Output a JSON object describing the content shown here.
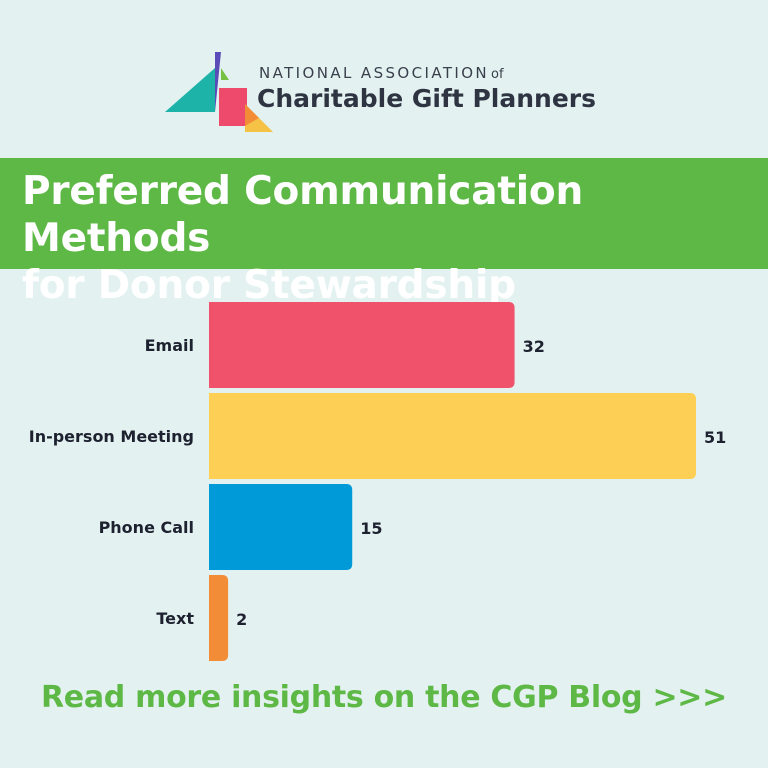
{
  "organization": {
    "line1": "NATIONAL ASSOCIATION",
    "line1_suffix": "of",
    "line2": "Charitable Gift Planners"
  },
  "banner": {
    "title_line1": "Preferred Communication Methods",
    "title_line2": "for Donor Stewardship"
  },
  "cta": {
    "text": "Read more insights on the CGP Blog >>>"
  },
  "colors": {
    "background": "#e3f2f1",
    "banner": "#5db846",
    "cta": "#5db846"
  },
  "chart_data": {
    "type": "bar",
    "orientation": "horizontal",
    "categories": [
      "Email",
      "In-person Meeting",
      "Phone Call",
      "Text"
    ],
    "values": [
      32,
      51,
      15,
      2
    ],
    "colors": [
      "#f0516b",
      "#fdd055",
      "#009ad8",
      "#f28c37"
    ],
    "data_labels": [
      "32",
      "51",
      "15",
      "2"
    ],
    "xlim": [
      0,
      51
    ],
    "grid": false,
    "legend": "none"
  }
}
